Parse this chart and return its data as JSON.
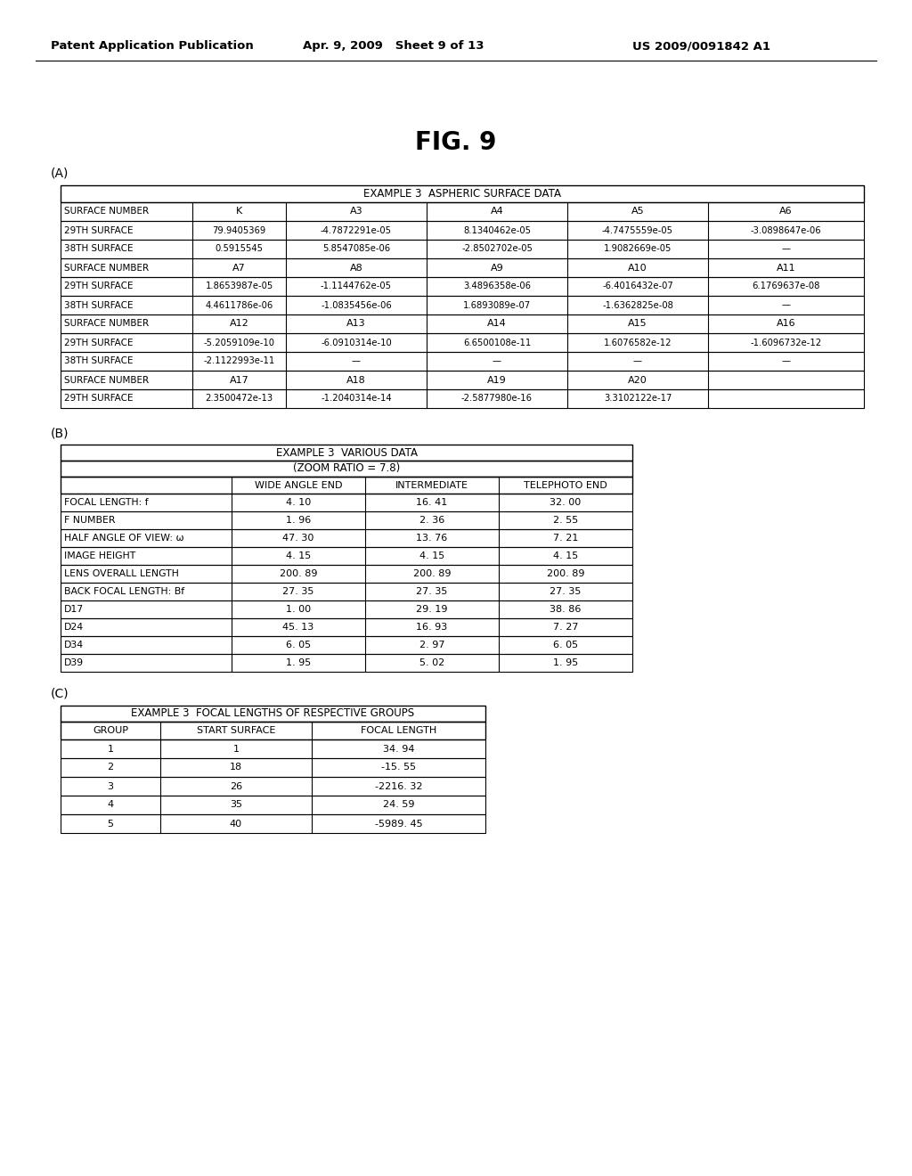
{
  "header_left": "Patent Application Publication",
  "header_mid": "Apr. 9, 2009   Sheet 9 of 13",
  "header_right": "US 2009/0091842 A1",
  "fig_title": "FIG. 9",
  "section_A_label": "(A)",
  "section_B_label": "(B)",
  "section_C_label": "(C)",
  "tableA_title": "EXAMPLE 3  ASPHERIC SURFACE DATA",
  "tableA_rows": [
    [
      "SURFACE NUMBER",
      "K",
      "A3",
      "A4",
      "A5",
      "A6"
    ],
    [
      "29TH SURFACE",
      "79.9405369",
      "-4.7872291e-05",
      "8.1340462e-05",
      "-4.7475559e-05",
      "-3.0898647e-06"
    ],
    [
      "38TH SURFACE",
      "0.5915545",
      "5.8547085e-06",
      "-2.8502702e-05",
      "1.9082669e-05",
      "—"
    ],
    [
      "SURFACE NUMBER",
      "A7",
      "A8",
      "A9",
      "A10",
      "A11"
    ],
    [
      "29TH SURFACE",
      "1.8653987e-05",
      "-1.1144762e-05",
      "3.4896358e-06",
      "-6.4016432e-07",
      "6.1769637e-08"
    ],
    [
      "38TH SURFACE",
      "4.4611786e-06",
      "-1.0835456e-06",
      "1.6893089e-07",
      "-1.6362825e-08",
      "—"
    ],
    [
      "SURFACE NUMBER",
      "A12",
      "A13",
      "A14",
      "A15",
      "A16"
    ],
    [
      "29TH SURFACE",
      "-5.2059109e-10",
      "-6.0910314e-10",
      "6.6500108e-11",
      "1.6076582e-12",
      "-1.6096732e-12"
    ],
    [
      "38TH SURFACE",
      "-2.1122993e-11",
      "—",
      "—",
      "—",
      "—"
    ],
    [
      "SURFACE NUMBER",
      "A17",
      "A18",
      "A19",
      "A20",
      ""
    ],
    [
      "29TH SURFACE",
      "2.3500472e-13",
      "-1.2040314e-14",
      "-2.5877980e-16",
      "3.3102122e-17",
      ""
    ]
  ],
  "tableB_title1": "EXAMPLE 3  VARIOUS DATA",
  "tableB_title2": "(ZOOM RATIO = 7.8)",
  "tableB_headers": [
    "",
    "WIDE ANGLE END",
    "INTERMEDIATE",
    "TELEPHOTO END"
  ],
  "tableB_rows": [
    [
      "FOCAL LENGTH: f",
      "4. 10",
      "16. 41",
      "32. 00"
    ],
    [
      "F NUMBER",
      "1. 96",
      "2. 36",
      "2. 55"
    ],
    [
      "HALF ANGLE OF VIEW: ω",
      "47. 30",
      "13. 76",
      "7. 21"
    ],
    [
      "IMAGE HEIGHT",
      "4. 15",
      "4. 15",
      "4. 15"
    ],
    [
      "LENS OVERALL LENGTH",
      "200. 89",
      "200. 89",
      "200. 89"
    ],
    [
      "BACK FOCAL LENGTH: Bf",
      "27. 35",
      "27. 35",
      "27. 35"
    ],
    [
      "D17",
      "1. 00",
      "29. 19",
      "38. 86"
    ],
    [
      "D24",
      "45. 13",
      "16. 93",
      "7. 27"
    ],
    [
      "D34",
      "6. 05",
      "2. 97",
      "6. 05"
    ],
    [
      "D39",
      "1. 95",
      "5. 02",
      "1. 95"
    ]
  ],
  "tableC_title": "EXAMPLE 3  FOCAL LENGTHS OF RESPECTIVE GROUPS",
  "tableC_headers": [
    "GROUP",
    "START SURFACE",
    "FOCAL LENGTH"
  ],
  "tableC_rows": [
    [
      "1",
      "1",
      "34. 94"
    ],
    [
      "2",
      "18",
      "-15. 55"
    ],
    [
      "3",
      "26",
      "-2216. 32"
    ],
    [
      "4",
      "35",
      "24. 59"
    ],
    [
      "5",
      "40",
      "-5989. 45"
    ]
  ],
  "bg_color": "#ffffff",
  "text_color": "#000000",
  "table_line_color": "#000000"
}
